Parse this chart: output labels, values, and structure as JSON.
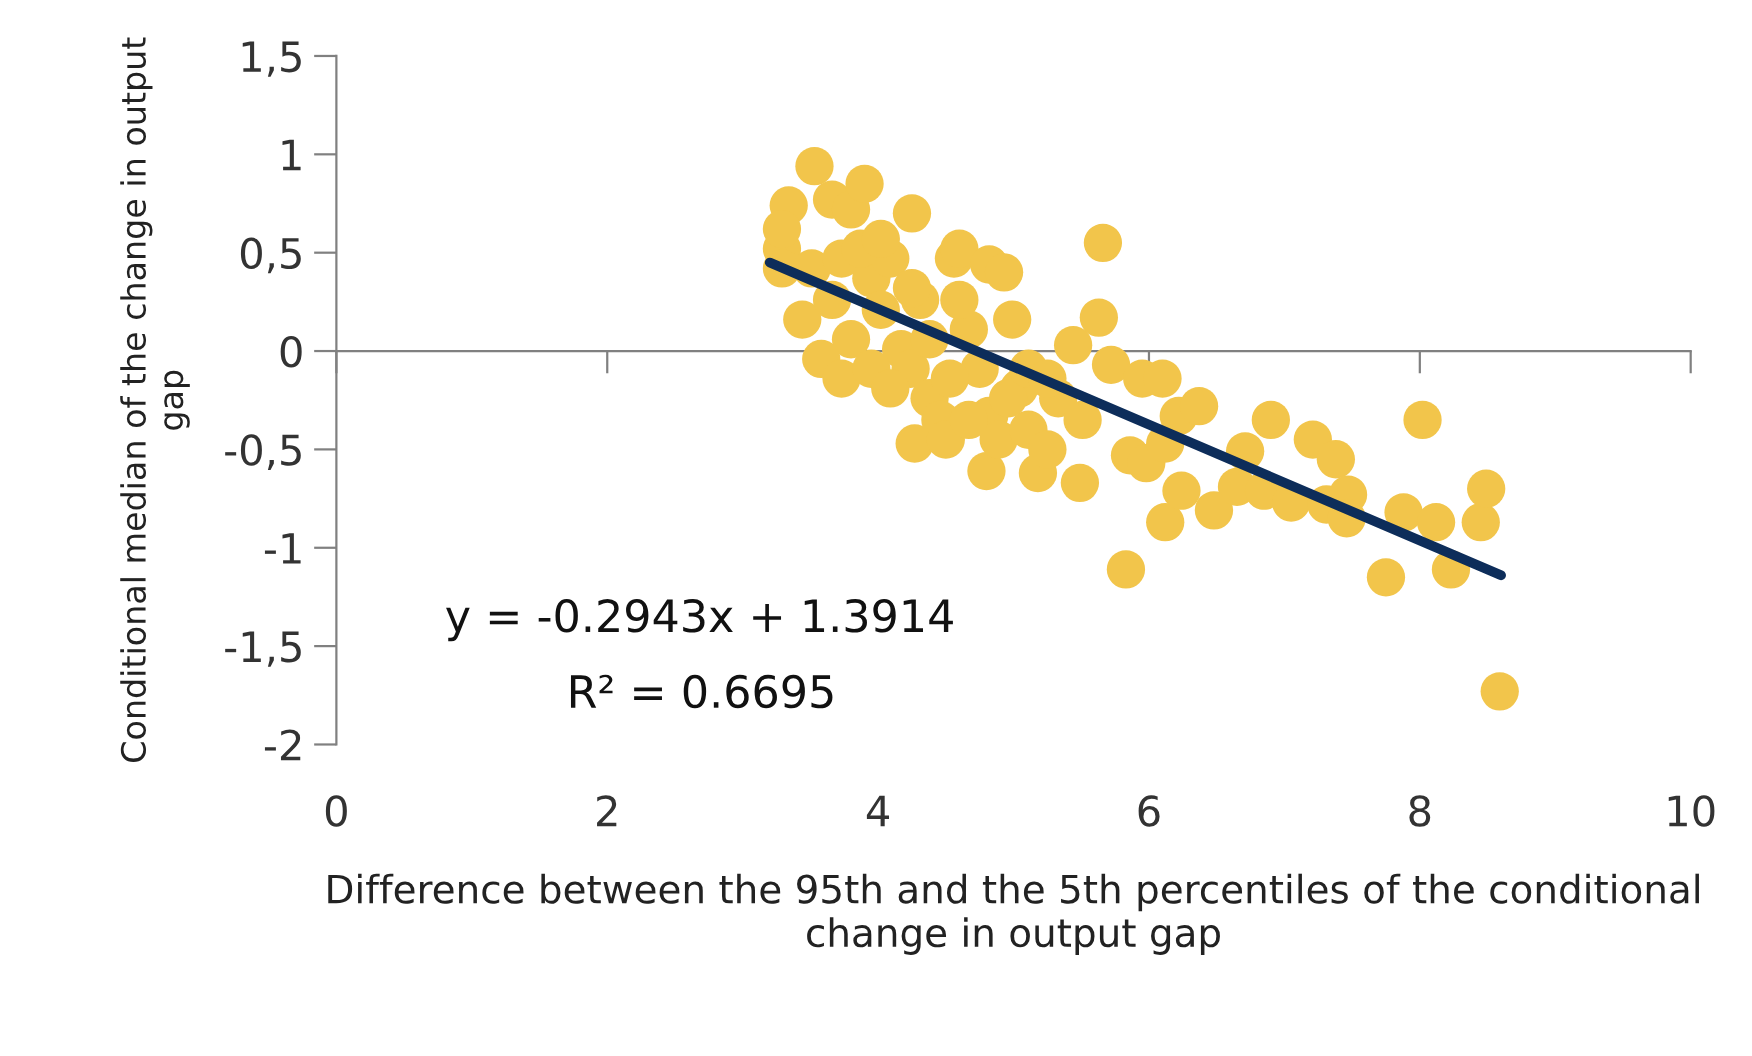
{
  "chart_data": {
    "type": "scatter",
    "xlabel": "Difference between the 95th and the 5th percentiles of the conditional change in output gap",
    "ylabel": "Conditional median of the change in output gap",
    "annotations": [
      "y = -0.2943x + 1.3914",
      "R² = 0.6695"
    ],
    "xlim": [
      0,
      10
    ],
    "xticks": [
      0,
      2,
      4,
      6,
      8,
      10
    ],
    "ylim": [
      -2,
      1.5
    ],
    "yticks": [
      -2,
      {
        "value": -1.5,
        "label": "-1,5"
      },
      -1,
      {
        "value": -0.5,
        "label": "-0,5"
      },
      0,
      {
        "value": 0.5,
        "label": "0,5"
      },
      1,
      {
        "value": 1.5,
        "label": "1,5"
      }
    ],
    "marker": "circle",
    "series": [
      {
        "color": "#f2c54b",
        "x": [
          3.29,
          3.34,
          3.53,
          3.66,
          3.8,
          3.9,
          4.25,
          3.29,
          3.44,
          3.66,
          3.8,
          3.95,
          4.02,
          4.09,
          4.17,
          4.24,
          4.31,
          4.38,
          4.27,
          4.46,
          4.56,
          4.6,
          4.67,
          4.75,
          4.82,
          4.93,
          4.82,
          4.8,
          4.89,
          4.99,
          5.04,
          5.11,
          5.18,
          5.25,
          5.33,
          5.44,
          5.49,
          5.51,
          5.66,
          5.63,
          5.72,
          5.83,
          5.86,
          5.98,
          5.95,
          6.1,
          6.12,
          6.22,
          6.12,
          6.24,
          6.37,
          6.48,
          6.65,
          6.71,
          6.9,
          6.85,
          7.05,
          7.21,
          7.31,
          7.38,
          7.47,
          7.46,
          7.75,
          7.88,
          8.02,
          8.12,
          8.23,
          8.45,
          8.49,
          8.59,
          3.51,
          3.73,
          3.87,
          4.02,
          3.58,
          3.73,
          3.95,
          4.09,
          4.38,
          4.53,
          4.5,
          4.67,
          4.96,
          5.11,
          5.25,
          4.6,
          4.25,
          3.29
        ],
        "values": [
          0.52,
          0.74,
          0.94,
          0.77,
          0.72,
          0.85,
          0.7,
          0.42,
          0.16,
          0.26,
          0.06,
          0.37,
          0.21,
          0.47,
          0.01,
          -0.09,
          0.26,
          -0.24,
          -0.47,
          -0.35,
          0.47,
          0.52,
          0.11,
          -0.09,
          0.44,
          0.4,
          -0.33,
          -0.61,
          -0.45,
          0.16,
          -0.19,
          -0.4,
          -0.62,
          -0.5,
          -0.24,
          0.03,
          -0.67,
          -0.35,
          0.55,
          0.17,
          -0.07,
          -1.11,
          -0.53,
          -0.57,
          -0.14,
          -0.14,
          -0.47,
          -0.33,
          -0.87,
          -0.71,
          -0.28,
          -0.81,
          -0.69,
          -0.51,
          -0.35,
          -0.71,
          -0.77,
          -0.45,
          -0.78,
          -0.55,
          -0.73,
          -0.85,
          -1.15,
          -0.82,
          -0.35,
          -0.87,
          -1.11,
          -0.87,
          -0.7,
          -1.73,
          0.42,
          0.47,
          0.52,
          0.57,
          -0.04,
          -0.14,
          -0.09,
          -0.19,
          0.06,
          -0.14,
          -0.45,
          -0.35,
          -0.24,
          -0.09,
          -0.14,
          0.26,
          0.32,
          0.62
        ]
      },
      {
        "type": "line",
        "color": "#0d2d5a",
        "marker": "none",
        "x": [
          3.2,
          8.6
        ],
        "values": [
          0.45,
          -1.14
        ]
      }
    ]
  }
}
